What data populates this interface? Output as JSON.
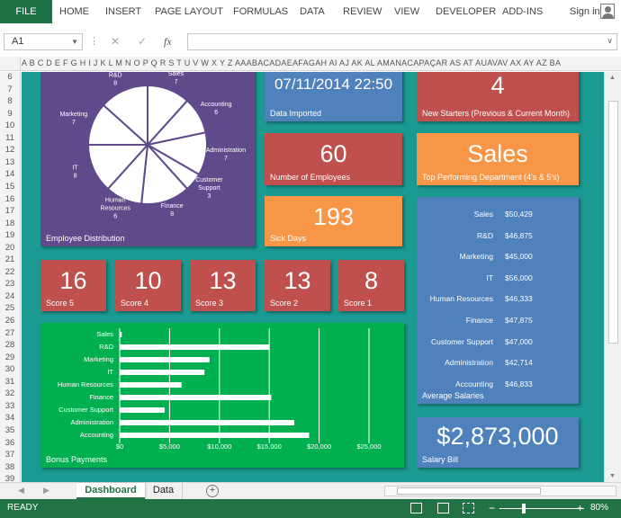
{
  "ribbon": {
    "file": "FILE",
    "tabs": [
      "HOME",
      "INSERT",
      "PAGE LAYOUT",
      "FORMULAS",
      "DATA",
      "REVIEW",
      "VIEW",
      "DEVELOPER",
      "ADD-INS"
    ],
    "sign_in": "Sign in"
  },
  "formula_bar": {
    "name_box": "A1",
    "separator": "⋮",
    "cancel": "✕",
    "enter": "✓",
    "fx": "fx",
    "value": ""
  },
  "column_letters": "A B C D E F G H I J K L M N O P Q R S T U V W X Y Z AAABACADAEAFAGAH AI AJ AK AL AMANACAPAÇAR AS AT AUAVAV AX AY AZ BA",
  "rows": [
    "6",
    "7",
    "8",
    "9",
    "10",
    "11",
    "12",
    "13",
    "14",
    "15",
    "16",
    "17",
    "18",
    "19",
    "20",
    "21",
    "22",
    "23",
    "24",
    "25",
    "26",
    "27",
    "28",
    "29",
    "30",
    "31",
    "32",
    "33",
    "34",
    "35",
    "36",
    "37",
    "38",
    "39"
  ],
  "dashboard": {
    "pie": {
      "caption": "Employee Distribution",
      "slices": [
        {
          "name": "Sales",
          "value": 7
        },
        {
          "name": "Accounting",
          "value": 6
        },
        {
          "name": "Administration",
          "value": 7
        },
        {
          "name": "Customer Support",
          "value": 3
        },
        {
          "name": "Finance",
          "value": 8
        },
        {
          "name": "Human Resources",
          "value": 6
        },
        {
          "name": "IT",
          "value": 8
        },
        {
          "name": "Marketing",
          "value": 7
        },
        {
          "name": "R&D",
          "value": 8
        }
      ]
    },
    "data_imported": {
      "value": "07/11/2014 22:50",
      "caption": "Data Imported"
    },
    "new_starters": {
      "value": "4",
      "caption": "New Starters (Previous & Current Month)"
    },
    "employees": {
      "value": "60",
      "caption": "Number of Employees"
    },
    "top_dept": {
      "value": "Sales",
      "caption": "Top Performing Department (4's & 5's)"
    },
    "sick_days": {
      "value": "193",
      "caption": "Sick Days"
    },
    "scores": [
      {
        "value": "16",
        "caption": "Score 5"
      },
      {
        "value": "10",
        "caption": "Score 4"
      },
      {
        "value": "13",
        "caption": "Score 3"
      },
      {
        "value": "13",
        "caption": "Score 2"
      },
      {
        "value": "8",
        "caption": "Score 1"
      }
    ],
    "salaries": {
      "caption": "Average Salaries",
      "rows": [
        {
          "dept": "Sales",
          "value": "$50,429"
        },
        {
          "dept": "R&D",
          "value": "$46,875"
        },
        {
          "dept": "Marketing",
          "value": "$45,000"
        },
        {
          "dept": "IT",
          "value": "$56,000"
        },
        {
          "dept": "Human Resources",
          "value": "$46,333"
        },
        {
          "dept": "Finance",
          "value": "$47,875"
        },
        {
          "dept": "Customer Support",
          "value": "$47,000"
        },
        {
          "dept": "Administration",
          "value": "$42,714"
        },
        {
          "dept": "Accounting",
          "value": "$46,833"
        }
      ]
    },
    "salary_bill": {
      "value": "$2,873,000",
      "caption": "Salary Bill"
    },
    "bonus_caption": "Bonus Payments"
  },
  "chart_data": [
    {
      "type": "pie",
      "labels": [
        "Sales",
        "Accounting",
        "Administration",
        "Customer Support",
        "Finance",
        "Human Resources",
        "IT",
        "Marketing",
        "R&D"
      ],
      "values": [
        7,
        6,
        7,
        3,
        8,
        6,
        8,
        7,
        8
      ],
      "title": "Employee Distribution"
    },
    {
      "type": "bar",
      "orientation": "horizontal",
      "categories": [
        "Sales",
        "R&D",
        "Marketing",
        "IT",
        "Human Resources",
        "Finance",
        "Customer Support",
        "Administration",
        "Accounting"
      ],
      "values": [
        200,
        15000,
        9000,
        8500,
        6200,
        15200,
        4500,
        17500,
        19000
      ],
      "title": "Bonus Payments",
      "xlim": [
        0,
        25000
      ],
      "xticks": [
        "$0",
        "$5,000",
        "$10,000",
        "$15,000",
        "$20,000",
        "$25,000"
      ],
      "grid": true
    }
  ],
  "sheets": {
    "active": "Dashboard",
    "other": "Data",
    "add": "+"
  },
  "status": {
    "ready": "READY",
    "zoom": "80%",
    "minus": "−",
    "plus": "+"
  },
  "colors": {
    "excel_green": "#217346",
    "dash_bg": "#1a9a91",
    "red": "#c0504d",
    "blue": "#4f81bd",
    "orange": "#f79646",
    "purple": "#5f4b8b",
    "green": "#00b050"
  }
}
